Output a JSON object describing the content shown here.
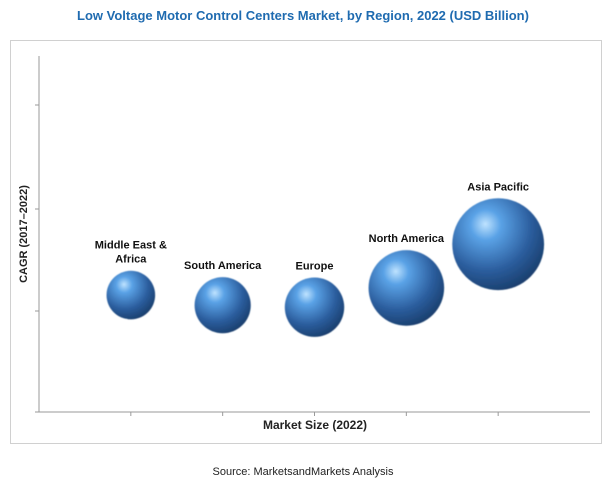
{
  "title": "Low Voltage Motor Control Centers Market, by Region, 2022 (USD Billion)",
  "source": "Source: MarketsandMarkets Analysis",
  "chart_data": {
    "type": "scatter",
    "title": "Low Voltage Motor Control Centers Market, by Region, 2022 (USD Billion)",
    "xlabel": "Market Size (2022)",
    "ylabel": "CAGR (2017–2022)",
    "grid": false,
    "legend": "none",
    "bubble_color": "#3a78c0",
    "series": [
      {
        "points": [
          {
            "label": "Middle East & Africa",
            "label_lines": [
              "Middle East &",
              "Africa"
            ],
            "x": 1,
            "y": 1.15,
            "size": 0.45
          },
          {
            "label": "South America",
            "label_lines": [
              "South America"
            ],
            "x": 2,
            "y": 1.05,
            "size": 0.52
          },
          {
            "label": "Europe",
            "label_lines": [
              "Europe"
            ],
            "x": 3,
            "y": 1.03,
            "size": 0.55
          },
          {
            "label": "North America",
            "label_lines": [
              "North America"
            ],
            "x": 4,
            "y": 1.22,
            "size": 0.7
          },
          {
            "label": "Asia Pacific",
            "label_lines": [
              "Asia Pacific"
            ],
            "x": 5,
            "y": 1.65,
            "size": 0.85
          }
        ]
      }
    ],
    "xlim": [
      0,
      6
    ],
    "ylim": [
      0,
      3.5
    ]
  }
}
